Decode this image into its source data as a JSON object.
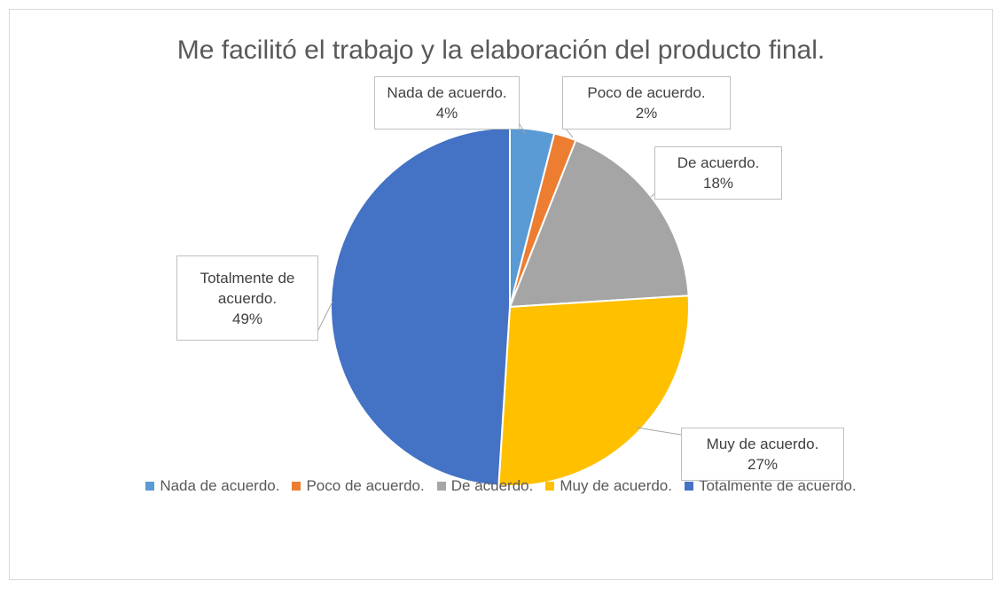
{
  "chart_data": {
    "type": "pie",
    "title": "Me facilitó el trabajo y la elaboración del producto final.",
    "categories": [
      "Nada de acuerdo.",
      "Poco de acuerdo.",
      "De acuerdo.",
      "Muy de acuerdo.",
      "Totalmente de acuerdo."
    ],
    "values": [
      4,
      2,
      18,
      27,
      49
    ],
    "value_labels": [
      "4%",
      "2%",
      "18%",
      "27%",
      "49%"
    ],
    "colors": [
      "#5b9bd5",
      "#ed7d31",
      "#a5a5a5",
      "#ffc000",
      "#4472c4"
    ],
    "legend": "bottom"
  }
}
